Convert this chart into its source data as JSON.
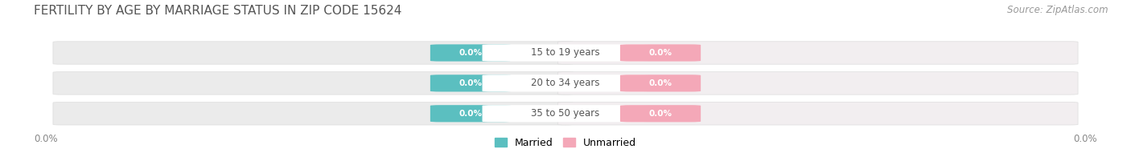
{
  "title": "FERTILITY BY AGE BY MARRIAGE STATUS IN ZIP CODE 15624",
  "source": "Source: ZipAtlas.com",
  "categories": [
    "15 to 19 years",
    "20 to 34 years",
    "35 to 50 years"
  ],
  "married_values": [
    0.0,
    0.0,
    0.0
  ],
  "unmarried_values": [
    0.0,
    0.0,
    0.0
  ],
  "married_color": "#5bbfc0",
  "unmarried_color": "#f4a8b8",
  "bar_bg_left_color": "#e8e8e8",
  "bar_bg_right_color": "#f5f0f2",
  "axis_label_left": "0.0%",
  "axis_label_right": "0.0%",
  "title_fontsize": 11,
  "source_fontsize": 8.5,
  "legend_married": "Married",
  "legend_unmarried": "Unmarried",
  "background_color": "#ffffff",
  "title_color": "#555555",
  "source_color": "#999999"
}
